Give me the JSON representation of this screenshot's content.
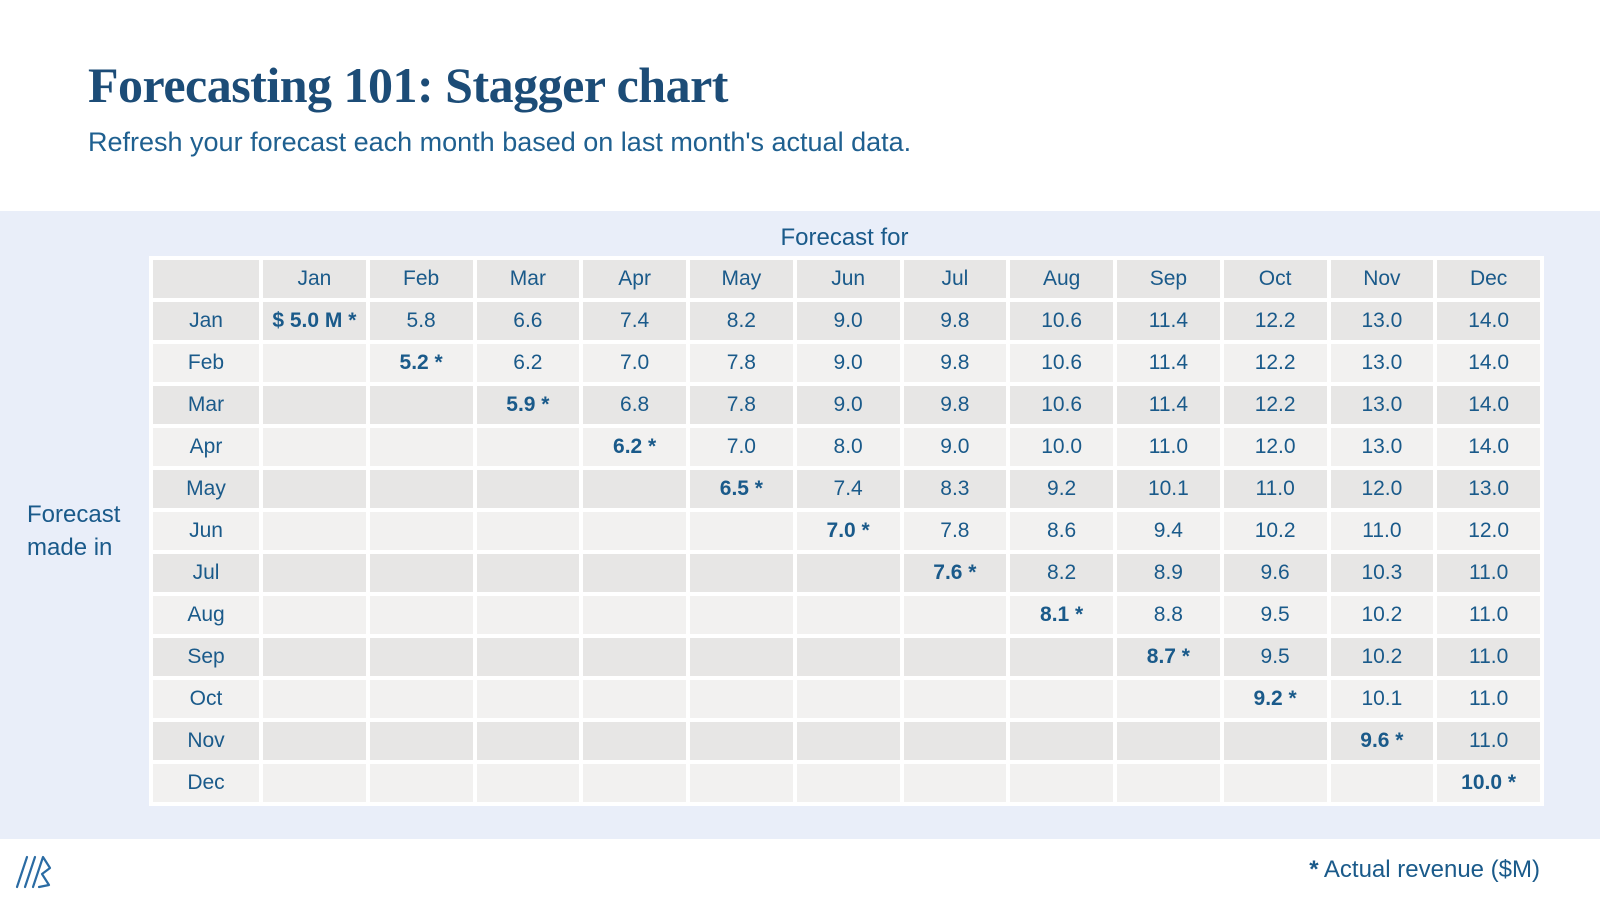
{
  "page": {
    "title": "Forecasting 101: Stagger chart",
    "subtitle": "Refresh your forecast each month based on last month's actual data."
  },
  "labels": {
    "column_axis": "Forecast for",
    "row_axis_line1": "Forecast",
    "row_axis_line2": "made in"
  },
  "footer": {
    "logo_icon": "company-logo-slashes",
    "footnote_star": "*",
    "footnote_text": " Actual revenue ($M)"
  },
  "colors": {
    "title_navy": "#1c4c77",
    "text_blue": "#1a5a8a",
    "band_background": "#e9eef9",
    "row_dark_gray": "#e7e6e5",
    "row_light_gray": "#f2f1f0"
  },
  "chart_data": {
    "type": "table",
    "title": "Forecasting 101: Stagger chart",
    "subtitle": "Refresh your forecast each month based on last month's actual data.",
    "column_axis_label": "Forecast for",
    "row_axis_label": "Forecast made in",
    "unit": "$M",
    "actual_marker": "*",
    "footnote": "* Actual revenue ($M)",
    "columns": [
      "Jan",
      "Feb",
      "Mar",
      "Apr",
      "May",
      "Jun",
      "Jul",
      "Aug",
      "Sep",
      "Oct",
      "Nov",
      "Dec"
    ],
    "rows": [
      {
        "label": "Jan",
        "cells": [
          "$ 5.0 M *",
          "5.8",
          "6.6",
          "7.4",
          "8.2",
          "9.0",
          "9.8",
          "10.6",
          "11.4",
          "12.2",
          "13.0",
          "14.0"
        ]
      },
      {
        "label": "Feb",
        "cells": [
          "",
          "5.2 *",
          "6.2",
          "7.0",
          "7.8",
          "9.0",
          "9.8",
          "10.6",
          "11.4",
          "12.2",
          "13.0",
          "14.0"
        ]
      },
      {
        "label": "Mar",
        "cells": [
          "",
          "",
          "5.9 *",
          "6.8",
          "7.8",
          "9.0",
          "9.8",
          "10.6",
          "11.4",
          "12.2",
          "13.0",
          "14.0"
        ]
      },
      {
        "label": "Apr",
        "cells": [
          "",
          "",
          "",
          "6.2 *",
          "7.0",
          "8.0",
          "9.0",
          "10.0",
          "11.0",
          "12.0",
          "13.0",
          "14.0"
        ]
      },
      {
        "label": "May",
        "cells": [
          "",
          "",
          "",
          "",
          "6.5 *",
          "7.4",
          "8.3",
          "9.2",
          "10.1",
          "11.0",
          "12.0",
          "13.0"
        ]
      },
      {
        "label": "Jun",
        "cells": [
          "",
          "",
          "",
          "",
          "",
          "7.0 *",
          "7.8",
          "8.6",
          "9.4",
          "10.2",
          "11.0",
          "12.0"
        ]
      },
      {
        "label": "Jul",
        "cells": [
          "",
          "",
          "",
          "",
          "",
          "",
          "7.6 *",
          "8.2",
          "8.9",
          "9.6",
          "10.3",
          "11.0"
        ]
      },
      {
        "label": "Aug",
        "cells": [
          "",
          "",
          "",
          "",
          "",
          "",
          "",
          "8.1 *",
          "8.8",
          "9.5",
          "10.2",
          "11.0"
        ]
      },
      {
        "label": "Sep",
        "cells": [
          "",
          "",
          "",
          "",
          "",
          "",
          "",
          "",
          "8.7 *",
          "9.5",
          "10.2",
          "11.0"
        ]
      },
      {
        "label": "Oct",
        "cells": [
          "",
          "",
          "",
          "",
          "",
          "",
          "",
          "",
          "",
          "9.2 *",
          "10.1",
          "11.0"
        ]
      },
      {
        "label": "Nov",
        "cells": [
          "",
          "",
          "",
          "",
          "",
          "",
          "",
          "",
          "",
          "",
          "9.6 *",
          "11.0"
        ]
      },
      {
        "label": "Dec",
        "cells": [
          "",
          "",
          "",
          "",
          "",
          "",
          "",
          "",
          "",
          "",
          "",
          "10.0 *"
        ]
      }
    ]
  }
}
